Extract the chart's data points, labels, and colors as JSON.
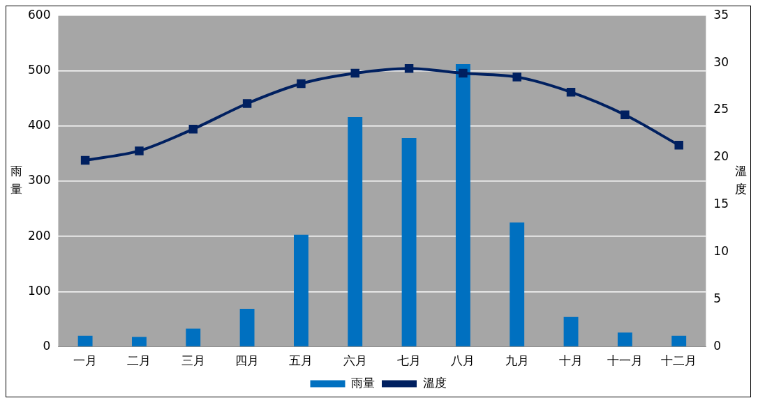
{
  "chart_data": {
    "type": "bar",
    "categories": [
      "一月",
      "二月",
      "三月",
      "四月",
      "五月",
      "六月",
      "七月",
      "八月",
      "九月",
      "十月",
      "十一月",
      "十二月"
    ],
    "series": [
      {
        "name": "雨量",
        "color": "#0070c0",
        "values": [
          20,
          18,
          33,
          69,
          203,
          416,
          378,
          512,
          225,
          54,
          26,
          20
        ]
      },
      {
        "name": "溫度",
        "type": "line",
        "axis": "y2",
        "color": "#002060",
        "values": [
          19.7,
          20.7,
          23.0,
          25.7,
          27.8,
          28.9,
          29.4,
          28.9,
          28.5,
          26.9,
          24.5,
          21.3
        ]
      }
    ],
    "ylabel": "雨量",
    "y2label": "溫度",
    "ylim": [
      0,
      600
    ],
    "yticks": [
      0,
      100,
      200,
      300,
      400,
      500,
      600
    ],
    "y2lim": [
      0,
      35
    ],
    "y2ticks": [
      0,
      5,
      10,
      15,
      20,
      25,
      30,
      35
    ],
    "grid": "y",
    "legend": "bottom",
    "marker": "square",
    "line_style": "solid"
  }
}
